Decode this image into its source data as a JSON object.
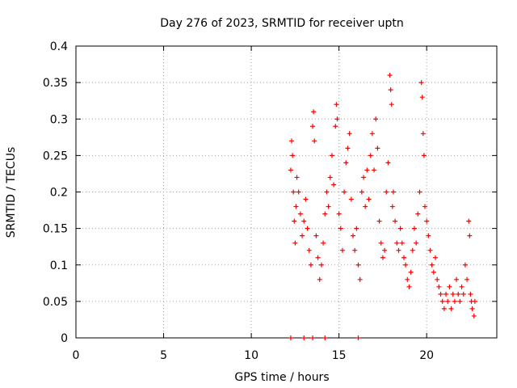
{
  "chart_data": {
    "type": "scatter",
    "title": "Day 276 of 2023, SRMTID for receiver uptn",
    "xlabel": "GPS time / hours",
    "ylabel": "SRMTID / TECUs",
    "xlim": [
      0,
      24
    ],
    "ylim": [
      0,
      0.4
    ],
    "x_ticks": [
      0,
      5,
      10,
      15,
      20
    ],
    "y_ticks": [
      0,
      0.05,
      0.1,
      0.15,
      0.2,
      0.25,
      0.3,
      0.35,
      0.4
    ],
    "x_tick_labels": [
      "0",
      "5",
      "10",
      "15",
      "20"
    ],
    "y_tick_labels": [
      "0",
      "0.05",
      "0.1",
      "0.15",
      "0.2",
      "0.25",
      "0.3",
      "0.35",
      "0.4"
    ],
    "grid": true,
    "series": [
      {
        "name": "SRMTID",
        "marker": "+",
        "color": "#ff0000",
        "points": [
          [
            12.25,
            0.23
          ],
          [
            12.3,
            0.27
          ],
          [
            12.35,
            0.25
          ],
          [
            12.4,
            0.2
          ],
          [
            12.45,
            0.16
          ],
          [
            12.5,
            0.13
          ],
          [
            12.55,
            0.18
          ],
          [
            12.6,
            0.22
          ],
          [
            12.7,
            0.2
          ],
          [
            12.8,
            0.17
          ],
          [
            12.9,
            0.14
          ],
          [
            13.0,
            0.16
          ],
          [
            13.1,
            0.19
          ],
          [
            13.2,
            0.15
          ],
          [
            13.3,
            0.12
          ],
          [
            13.4,
            0.1
          ],
          [
            13.5,
            0.29
          ],
          [
            13.55,
            0.31
          ],
          [
            13.6,
            0.27
          ],
          [
            13.7,
            0.14
          ],
          [
            13.8,
            0.11
          ],
          [
            13.9,
            0.08
          ],
          [
            14.0,
            0.1
          ],
          [
            14.1,
            0.13
          ],
          [
            14.2,
            0.17
          ],
          [
            14.3,
            0.2
          ],
          [
            14.4,
            0.18
          ],
          [
            14.5,
            0.22
          ],
          [
            14.6,
            0.25
          ],
          [
            14.7,
            0.21
          ],
          [
            14.8,
            0.29
          ],
          [
            14.85,
            0.32
          ],
          [
            14.9,
            0.3
          ],
          [
            15.0,
            0.17
          ],
          [
            15.1,
            0.15
          ],
          [
            15.2,
            0.12
          ],
          [
            15.3,
            0.2
          ],
          [
            15.4,
            0.24
          ],
          [
            15.5,
            0.26
          ],
          [
            15.6,
            0.28
          ],
          [
            15.7,
            0.19
          ],
          [
            15.8,
            0.14
          ],
          [
            15.9,
            0.12
          ],
          [
            16.0,
            0.15
          ],
          [
            16.1,
            0.1
          ],
          [
            16.2,
            0.08
          ],
          [
            16.3,
            0.2
          ],
          [
            16.4,
            0.22
          ],
          [
            16.5,
            0.18
          ],
          [
            16.6,
            0.23
          ],
          [
            16.7,
            0.19
          ],
          [
            16.8,
            0.25
          ],
          [
            16.9,
            0.28
          ],
          [
            17.0,
            0.23
          ],
          [
            17.1,
            0.3
          ],
          [
            17.2,
            0.26
          ],
          [
            17.3,
            0.16
          ],
          [
            17.4,
            0.13
          ],
          [
            17.5,
            0.11
          ],
          [
            17.6,
            0.12
          ],
          [
            17.7,
            0.2
          ],
          [
            17.8,
            0.24
          ],
          [
            17.9,
            0.36
          ],
          [
            17.95,
            0.34
          ],
          [
            18.0,
            0.32
          ],
          [
            18.05,
            0.18
          ],
          [
            18.1,
            0.2
          ],
          [
            18.2,
            0.16
          ],
          [
            18.3,
            0.13
          ],
          [
            18.4,
            0.12
          ],
          [
            18.5,
            0.15
          ],
          [
            18.6,
            0.13
          ],
          [
            18.7,
            0.11
          ],
          [
            18.8,
            0.1
          ],
          [
            18.9,
            0.08
          ],
          [
            19.0,
            0.07
          ],
          [
            19.1,
            0.09
          ],
          [
            19.2,
            0.12
          ],
          [
            19.3,
            0.15
          ],
          [
            19.4,
            0.13
          ],
          [
            19.5,
            0.17
          ],
          [
            19.6,
            0.2
          ],
          [
            19.7,
            0.35
          ],
          [
            19.75,
            0.33
          ],
          [
            19.8,
            0.28
          ],
          [
            19.85,
            0.25
          ],
          [
            19.9,
            0.18
          ],
          [
            20.0,
            0.16
          ],
          [
            20.1,
            0.14
          ],
          [
            20.2,
            0.12
          ],
          [
            20.3,
            0.1
          ],
          [
            20.4,
            0.09
          ],
          [
            20.5,
            0.11
          ],
          [
            20.6,
            0.08
          ],
          [
            20.7,
            0.07
          ],
          [
            20.8,
            0.06
          ],
          [
            20.9,
            0.05
          ],
          [
            21.0,
            0.04
          ],
          [
            21.1,
            0.06
          ],
          [
            21.2,
            0.05
          ],
          [
            21.3,
            0.07
          ],
          [
            21.4,
            0.04
          ],
          [
            21.5,
            0.06
          ],
          [
            21.6,
            0.05
          ],
          [
            21.7,
            0.08
          ],
          [
            21.8,
            0.06
          ],
          [
            21.9,
            0.05
          ],
          [
            22.0,
            0.07
          ],
          [
            22.1,
            0.06
          ],
          [
            22.2,
            0.1
          ],
          [
            22.3,
            0.08
          ],
          [
            22.4,
            0.16
          ],
          [
            22.45,
            0.14
          ],
          [
            22.5,
            0.06
          ],
          [
            22.55,
            0.05
          ],
          [
            22.6,
            0.04
          ],
          [
            22.7,
            0.03
          ],
          [
            22.75,
            0.05
          ],
          [
            12.25,
            0
          ],
          [
            13.0,
            0
          ],
          [
            13.5,
            0
          ],
          [
            14.2,
            0
          ],
          [
            16.1,
            0
          ]
        ]
      }
    ]
  }
}
